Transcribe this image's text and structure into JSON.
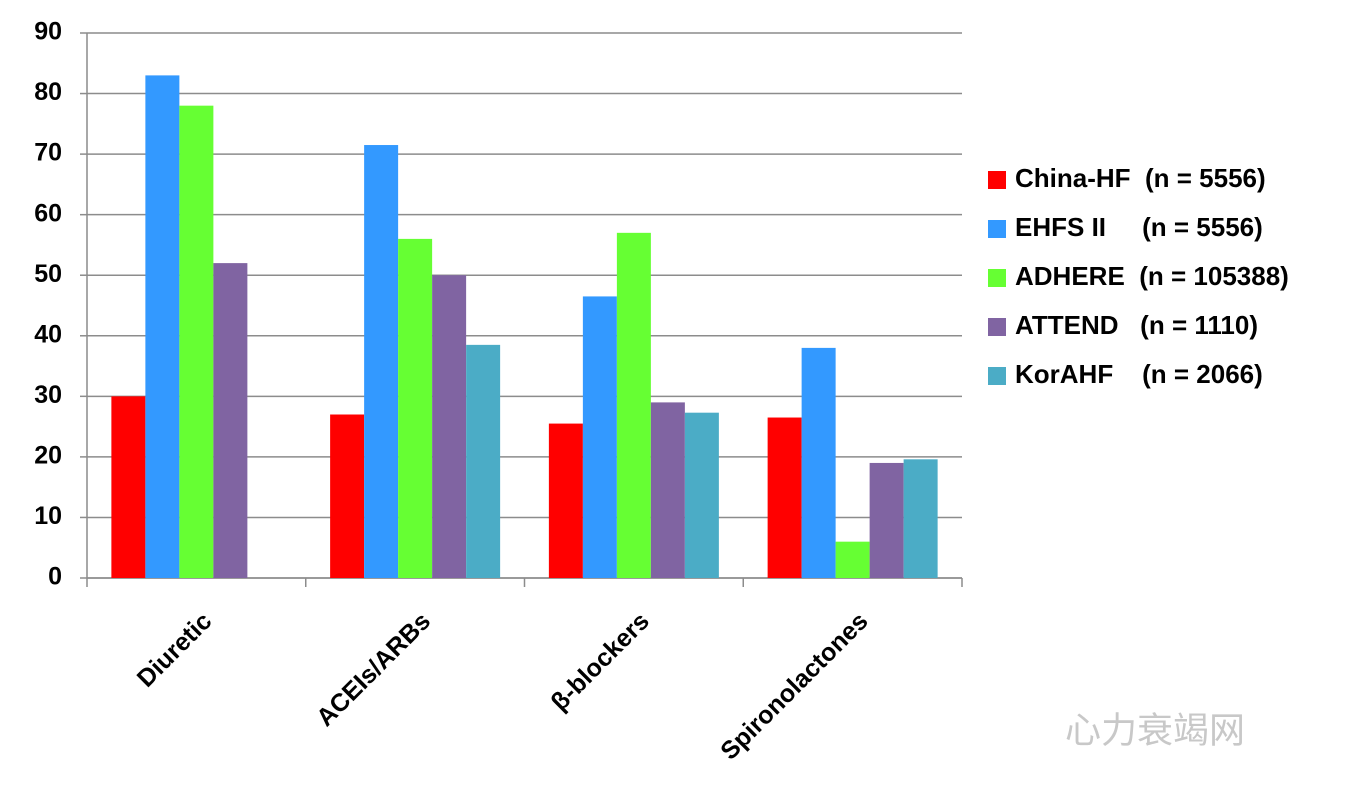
{
  "chart_data": {
    "type": "bar",
    "categories": [
      "Diuretic",
      "ACEIs/ARBs",
      "β-blockers",
      "Spironolactones"
    ],
    "series": [
      {
        "name": "China-HF  (n = 5556)",
        "color": "#ff0000",
        "values": [
          30,
          27,
          25.5,
          26.5
        ]
      },
      {
        "name": "EHFS II     (n = 5556)",
        "color": "#3399ff",
        "values": [
          83,
          71.5,
          46.5,
          38
        ]
      },
      {
        "name": "ADHERE  (n = 105388)",
        "color": "#66ff33",
        "values": [
          78,
          56,
          57,
          6
        ]
      },
      {
        "name": "ATTEND   (n = 1110)",
        "color": "#8064a2",
        "values": [
          52,
          50,
          29,
          19
        ]
      },
      {
        "name": "KorAHF    (n = 2066)",
        "color": "#4bacc6",
        "values": [
          null,
          38.5,
          27.3,
          19.6
        ]
      }
    ],
    "ylim": [
      0,
      90
    ],
    "yticks": [
      0,
      10,
      20,
      30,
      40,
      50,
      60,
      70,
      80,
      90
    ],
    "grid": true,
    "legend": "right",
    "watermark": "心力衰竭网"
  }
}
